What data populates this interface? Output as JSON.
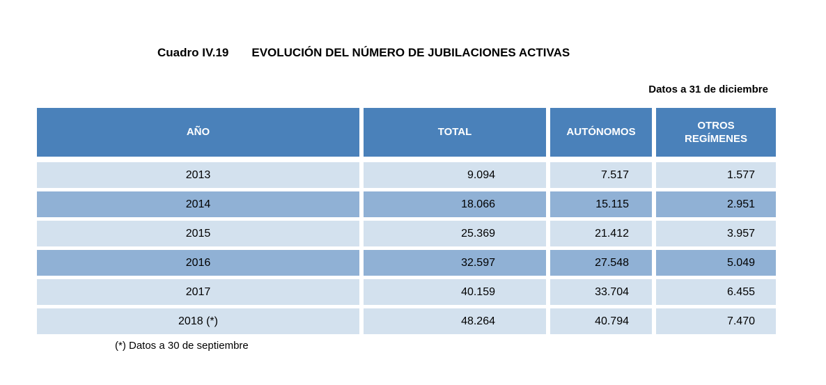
{
  "header": {
    "caption_label": "Cuadro IV.19",
    "title": "EVOLUCIÓN DEL NÚMERO DE JUBILACIONES ACTIVAS",
    "note_right": "Datos a 31 de diciembre"
  },
  "table": {
    "columns": [
      "AÑO",
      "TOTAL",
      "AUTÓNOMOS",
      "OTROS REGÍMENES"
    ],
    "rows": [
      {
        "year": "2013",
        "total": "9.094",
        "autonomos": "7.517",
        "otros": "1.577",
        "shade": "light"
      },
      {
        "year": "2014",
        "total": "18.066",
        "autonomos": "15.115",
        "otros": "2.951",
        "shade": "dark"
      },
      {
        "year": "2015",
        "total": "25.369",
        "autonomos": "21.412",
        "otros": "3.957",
        "shade": "light"
      },
      {
        "year": "2016",
        "total": "32.597",
        "autonomos": "27.548",
        "otros": "5.049",
        "shade": "dark"
      },
      {
        "year": "2017",
        "total": "40.159",
        "autonomos": "33.704",
        "otros": "6.455",
        "shade": "light"
      },
      {
        "year": "2018 (*)",
        "total": "48.264",
        "autonomos": "40.794",
        "otros": "7.470",
        "shade": "light"
      }
    ]
  },
  "footnote": {
    "text": "(*) Datos a 30 de septiembre"
  },
  "colors": {
    "header-bg": "#4A81BA",
    "header-text": "#FFFFFF",
    "row-dark": "#90B1D5",
    "row-light": "#D3E1EE",
    "body-text": "#000000"
  }
}
